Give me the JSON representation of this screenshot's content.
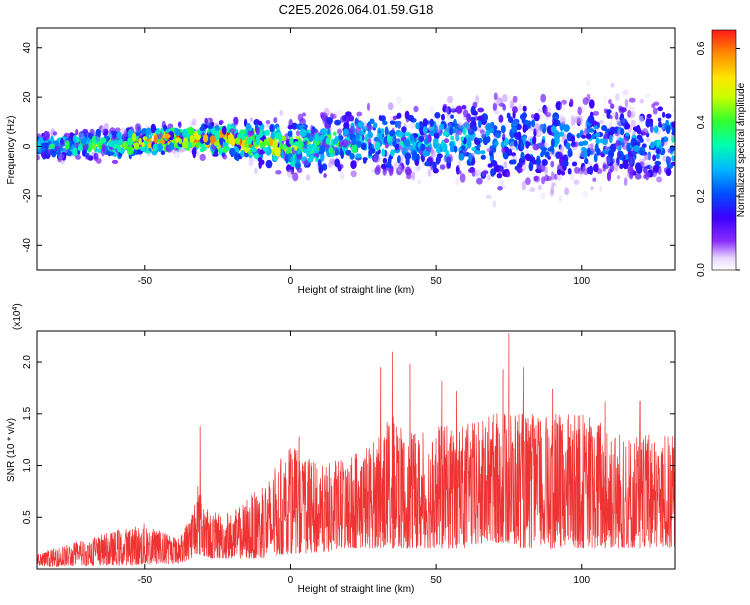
{
  "title": "C2E5.2026.064.01.59.G18",
  "colors": {
    "snr_line": "#ee3333",
    "axis": "#000000",
    "colormap": [
      "#ffffff",
      "#6a00ff",
      "#2200ff",
      "#0060ff",
      "#00c8ff",
      "#00ff9a",
      "#7cff00",
      "#ffe600",
      "#ff8c00",
      "#ff0000"
    ]
  },
  "chart_data": [
    {
      "type": "heatmap",
      "title": "C2E5.2026.064.01.59.G18",
      "xlabel": "Height of straight line (km)",
      "ylabel": "Frequency (Hz)",
      "xlim": [
        -87,
        132
      ],
      "ylim": [
        -50,
        48
      ],
      "x_ticks": [
        -50,
        0,
        50,
        100
      ],
      "y_ticks": [
        -40,
        -20,
        0,
        20,
        40
      ],
      "colorbar": {
        "label": "Normalized spectral amplitude",
        "range": [
          0.0,
          0.65
        ],
        "ticks": [
          "0.0",
          "0.2",
          "0.4",
          "0.6"
        ],
        "colormap": "rainbow (white-purple-blue-cyan-green-yellow-red)"
      },
      "band": {
        "x": [
          -87,
          -60,
          -40,
          -20,
          0,
          20,
          40,
          60,
          70,
          80,
          100,
          120,
          132
        ],
        "center_hz": [
          0,
          1,
          3,
          3,
          0,
          2,
          2,
          3,
          0,
          2,
          3,
          2,
          1
        ],
        "halfwidth_hz": [
          6,
          7,
          6,
          8,
          12,
          14,
          16,
          18,
          25,
          22,
          22,
          20,
          18
        ],
        "peak_amplitude": [
          0.3,
          0.45,
          0.6,
          0.6,
          0.45,
          0.35,
          0.3,
          0.3,
          0.25,
          0.25,
          0.25,
          0.25,
          0.3
        ]
      }
    },
    {
      "type": "line",
      "xlabel": "Height of straight line (km)",
      "ylabel": "SNR (10 * v/v)",
      "y_multiplier": "(x10^4)",
      "xlim": [
        -87,
        132
      ],
      "ylim": [
        0,
        2.3
      ],
      "x_ticks": [
        -50,
        0,
        50,
        100
      ],
      "y_ticks": [
        "0.5",
        "1.0",
        "1.5",
        "2.0"
      ],
      "series": [
        {
          "color": "#ee3333",
          "envelope": {
            "x": [
              -87,
              -70,
              -50,
              -38,
              -34,
              -32,
              -28,
              -20,
              -10,
              0,
              10,
              20,
              30,
              35,
              40,
              50,
              60,
              70,
              75,
              80,
              90,
              100,
              110,
              120,
              132
            ],
            "floor": [
              0.02,
              0.03,
              0.04,
              0.05,
              0.1,
              0.15,
              0.1,
              0.1,
              0.1,
              0.15,
              0.15,
              0.2,
              0.2,
              0.2,
              0.2,
              0.2,
              0.2,
              0.25,
              0.25,
              0.2,
              0.2,
              0.2,
              0.2,
              0.2,
              0.2
            ],
            "ceiling": [
              0.15,
              0.3,
              0.45,
              0.3,
              0.6,
              0.85,
              0.55,
              0.55,
              0.8,
              1.2,
              1.0,
              1.1,
              1.3,
              1.5,
              1.3,
              1.4,
              1.4,
              1.5,
              1.6,
              1.5,
              1.5,
              1.5,
              1.4,
              1.3,
              1.3
            ]
          },
          "spikes": [
            {
              "x": -31,
              "y": 1.38
            },
            {
              "x": 3,
              "y": 1.28
            },
            {
              "x": 31,
              "y": 1.95
            },
            {
              "x": 35,
              "y": 2.1
            },
            {
              "x": 41,
              "y": 1.98
            },
            {
              "x": 52,
              "y": 1.82
            },
            {
              "x": 57,
              "y": 1.72
            },
            {
              "x": 73,
              "y": 1.93
            },
            {
              "x": 75,
              "y": 2.28
            },
            {
              "x": 80,
              "y": 1.95
            },
            {
              "x": 90,
              "y": 1.74
            },
            {
              "x": 108,
              "y": 1.62
            },
            {
              "x": 120,
              "y": 1.62
            }
          ]
        }
      ]
    }
  ]
}
